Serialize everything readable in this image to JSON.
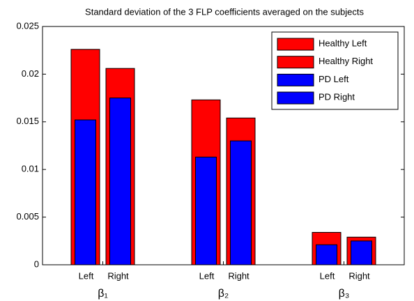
{
  "chart_data": {
    "type": "bar",
    "title": "Standard deviation of the 3 FLP coefficients averaged on the subjects",
    "categories": [
      "β₁",
      "β₂",
      "β₃"
    ],
    "bar_labels": [
      "Left",
      "Right"
    ],
    "series": [
      {
        "name": "Healthy Left",
        "color": "#ff0000",
        "values": [
          0.0226,
          0.0173,
          0.0034
        ]
      },
      {
        "name": "Healthy Right",
        "color": "#ff0000",
        "values": [
          0.0206,
          0.0154,
          0.0029
        ]
      },
      {
        "name": "PD Left",
        "color": "#0000ff",
        "values": [
          0.0152,
          0.0113,
          0.0021
        ]
      },
      {
        "name": "PD Right",
        "color": "#0000ff",
        "values": [
          0.0175,
          0.013,
          0.0025
        ]
      }
    ],
    "ylim": [
      0,
      0.025
    ],
    "yticks": [
      0,
      0.005,
      0.01,
      0.015,
      0.02,
      0.025
    ],
    "legend": "top-right",
    "grid": false
  }
}
